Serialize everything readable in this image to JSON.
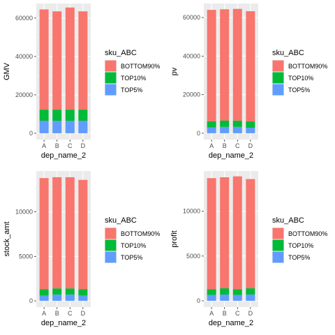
{
  "legend": {
    "title": "sku_ABC",
    "entries": [
      {
        "label": "BOTTOM90%",
        "color": "#F8766D"
      },
      {
        "label": "TOP10%",
        "color": "#00BA38"
      },
      {
        "label": "TOP5%",
        "color": "#619CFF"
      }
    ]
  },
  "chart_data": [
    {
      "type": "bar",
      "stacked": true,
      "xlabel": "dep_name_2",
      "ylabel": "GMV",
      "categories": [
        "A",
        "B",
        "C",
        "D"
      ],
      "ylim": [
        -3300,
        67600
      ],
      "yticks": [
        0,
        20000,
        40000,
        60000
      ],
      "ytick_labels": [
        "0",
        "20000",
        "40000",
        "60000"
      ],
      "grid": true,
      "legend_position": "right",
      "series": [
        {
          "name": "TOP5%",
          "values": [
            6500,
            6500,
            6500,
            6500
          ]
        },
        {
          "name": "TOP10%",
          "values": [
            5800,
            5800,
            5800,
            5800
          ]
        },
        {
          "name": "BOTTOM90%",
          "values": [
            52200,
            51200,
            53200,
            51200
          ]
        }
      ]
    },
    {
      "type": "bar",
      "stacked": true,
      "xlabel": "dep_name_2",
      "ylabel": "pv",
      "categories": [
        "A",
        "B",
        "C",
        "D"
      ],
      "ylim": [
        -3300,
        67300
      ],
      "yticks": [
        0,
        20000,
        40000,
        60000
      ],
      "ytick_labels": [
        "0",
        "20000",
        "40000",
        "60000"
      ],
      "grid": true,
      "legend_position": "right",
      "series": [
        {
          "name": "TOP5%",
          "values": [
            3000,
            3300,
            3300,
            2800
          ]
        },
        {
          "name": "TOP10%",
          "values": [
            3200,
            3300,
            3200,
            3300
          ]
        },
        {
          "name": "BOTTOM90%",
          "values": [
            57800,
            57700,
            58000,
            57200
          ]
        }
      ]
    },
    {
      "type": "bar",
      "stacked": true,
      "xlabel": "dep_name_2",
      "ylabel": "stock_amt",
      "categories": [
        "A",
        "B",
        "C",
        "D"
      ],
      "ylim": [
        -700,
        14600
      ],
      "yticks": [
        0,
        5000,
        10000
      ],
      "ytick_labels": [
        "0",
        "5000",
        "10000"
      ],
      "grid": true,
      "legend_position": "right",
      "series": [
        {
          "name": "TOP5%",
          "values": [
            600,
            700,
            700,
            600
          ]
        },
        {
          "name": "TOP10%",
          "values": [
            700,
            700,
            700,
            700
          ]
        },
        {
          "name": "BOTTOM90%",
          "values": [
            12500,
            12500,
            12500,
            12300
          ]
        }
      ]
    },
    {
      "type": "bar",
      "stacked": true,
      "xlabel": "dep_name_2",
      "ylabel": "profit",
      "categories": [
        "A",
        "B",
        "C",
        "D"
      ],
      "ylim": [
        -700,
        14500
      ],
      "yticks": [
        0,
        5000,
        10000
      ],
      "ytick_labels": [
        "0",
        "5000",
        "10000"
      ],
      "grid": true,
      "legend_position": "right",
      "series": [
        {
          "name": "TOP5%",
          "values": [
            650,
            700,
            650,
            700
          ]
        },
        {
          "name": "TOP10%",
          "values": [
            650,
            700,
            650,
            700
          ]
        },
        {
          "name": "BOTTOM90%",
          "values": [
            12400,
            12400,
            12600,
            12200
          ]
        }
      ]
    }
  ]
}
